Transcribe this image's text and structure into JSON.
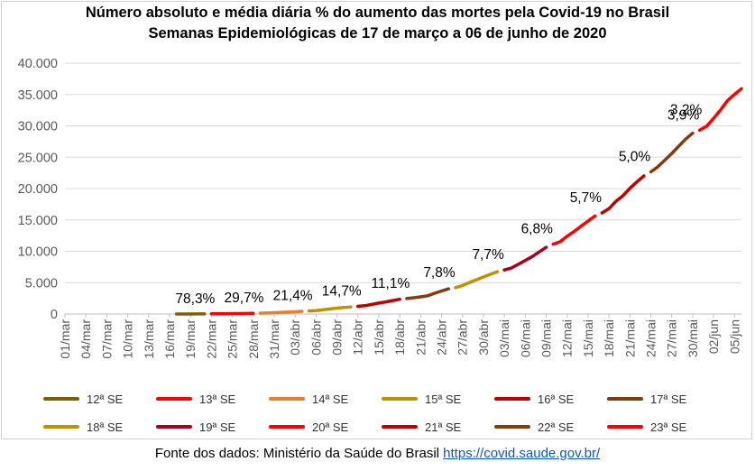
{
  "chart_data": {
    "type": "line",
    "title": "Número absoluto e média diária % do aumento das mortes pela Covid-19 no Brasil",
    "subtitle": "Semanas Epidemiológicas de 17 de março a 06 de junho de 2020",
    "ylim": [
      0,
      40000
    ],
    "yticks": [
      "0",
      "5.000",
      "10.000",
      "15.000",
      "20.000",
      "25.000",
      "30.000",
      "35.000",
      "40.000"
    ],
    "ytick_values": [
      0,
      5000,
      10000,
      15000,
      20000,
      25000,
      30000,
      35000,
      40000
    ],
    "x_start": "2020-03-01",
    "x_end": "2020-06-06",
    "xticks": [
      "01/mar",
      "04/mar",
      "07/mar",
      "10/mar",
      "13/mar",
      "16/mar",
      "19/mar",
      "22/mar",
      "25/mar",
      "28/mar",
      "31/mar",
      "03/abr",
      "06/abr",
      "09/abr",
      "12/abr",
      "15/abr",
      "18/abr",
      "21/abr",
      "24/abr",
      "27/abr",
      "30/abr",
      "03/mai",
      "06/mai",
      "09/mai",
      "12/mai",
      "15/mai",
      "18/mai",
      "21/mai",
      "24/mai",
      "27/mai",
      "30/mai",
      "02/jun",
      "05/jun"
    ],
    "xtick_dates": [
      "2020-03-01",
      "2020-03-04",
      "2020-03-07",
      "2020-03-10",
      "2020-03-13",
      "2020-03-16",
      "2020-03-19",
      "2020-03-22",
      "2020-03-25",
      "2020-03-28",
      "2020-03-31",
      "2020-04-03",
      "2020-04-06",
      "2020-04-09",
      "2020-04-12",
      "2020-04-15",
      "2020-04-18",
      "2020-04-21",
      "2020-04-24",
      "2020-04-27",
      "2020-04-30",
      "2020-05-03",
      "2020-05-06",
      "2020-05-09",
      "2020-05-12",
      "2020-05-15",
      "2020-05-18",
      "2020-05-21",
      "2020-05-24",
      "2020-05-27",
      "2020-05-30",
      "2020-06-02",
      "2020-06-05"
    ],
    "grid": true,
    "legend_position": "bottom",
    "series": [
      {
        "name": "12ª SE",
        "color": "#7f6000",
        "label": "",
        "x": [
          "2020-03-17",
          "2020-03-18",
          "2020-03-19",
          "2020-03-20",
          "2020-03-21"
        ],
        "y": [
          1,
          4,
          7,
          11,
          18
        ]
      },
      {
        "name": "13ª SE",
        "color": "#ff0000",
        "label": "78,3%",
        "x": [
          "2020-03-22",
          "2020-03-23",
          "2020-03-24",
          "2020-03-25",
          "2020-03-26",
          "2020-03-27",
          "2020-03-28"
        ],
        "y": [
          25,
          34,
          46,
          57,
          77,
          92,
          111
        ]
      },
      {
        "name": "14ª SE",
        "color": "#ed7d31",
        "label": "29,7%",
        "x": [
          "2020-03-29",
          "2020-03-30",
          "2020-03-31",
          "2020-04-01",
          "2020-04-02",
          "2020-04-03",
          "2020-04-04"
        ],
        "y": [
          136,
          159,
          201,
          240,
          299,
          359,
          432
        ]
      },
      {
        "name": "15ª SE",
        "color": "#bf9000",
        "label": "21,4%",
        "x": [
          "2020-04-05",
          "2020-04-06",
          "2020-04-07",
          "2020-04-08",
          "2020-04-09",
          "2020-04-10",
          "2020-04-11"
        ],
        "y": [
          486,
          553,
          667,
          800,
          941,
          1057,
          1124
        ]
      },
      {
        "name": "16ª SE",
        "color": "#c00000",
        "label": "14,7%",
        "x": [
          "2020-04-12",
          "2020-04-13",
          "2020-04-14",
          "2020-04-15",
          "2020-04-16",
          "2020-04-17",
          "2020-04-18"
        ],
        "y": [
          1223,
          1328,
          1532,
          1736,
          1924,
          2141,
          2347
        ]
      },
      {
        "name": "17ª SE",
        "color": "#843c0c",
        "label": "11,1%",
        "x": [
          "2020-04-19",
          "2020-04-20",
          "2020-04-21",
          "2020-04-22",
          "2020-04-23",
          "2020-04-24",
          "2020-04-25"
        ],
        "y": [
          2462,
          2587,
          2741,
          2906,
          3313,
          3670,
          4016
        ]
      },
      {
        "name": "18ª SE",
        "color": "#bf9000",
        "label": "7,8%",
        "x": [
          "2020-04-26",
          "2020-04-27",
          "2020-04-28",
          "2020-04-29",
          "2020-04-30",
          "2020-05-01",
          "2020-05-02"
        ],
        "y": [
          4205,
          4543,
          5017,
          5466,
          5901,
          6329,
          6750
        ]
      },
      {
        "name": "19ª SE",
        "color": "#a50021",
        "label": "7,7%",
        "x": [
          "2020-05-03",
          "2020-05-04",
          "2020-05-05",
          "2020-05-06",
          "2020-05-07",
          "2020-05-08",
          "2020-05-09"
        ],
        "y": [
          7025,
          7321,
          7921,
          8536,
          9146,
          9897,
          10627
        ]
      },
      {
        "name": "20ª SE",
        "color": "#ff0000",
        "label": "6,8%",
        "x": [
          "2020-05-10",
          "2020-05-11",
          "2020-05-12",
          "2020-05-13",
          "2020-05-14",
          "2020-05-15",
          "2020-05-16"
        ],
        "y": [
          11123,
          11519,
          12400,
          13149,
          13993,
          14817,
          15633
        ]
      },
      {
        "name": "21ª SE",
        "color": "#c00000",
        "label": "5,7%",
        "x": [
          "2020-05-17",
          "2020-05-18",
          "2020-05-19",
          "2020-05-20",
          "2020-05-21",
          "2020-05-22",
          "2020-05-23"
        ],
        "y": [
          16118,
          16792,
          17971,
          18859,
          20047,
          21048,
          22013
        ]
      },
      {
        "name": "22ª SE",
        "color": "#843c0c",
        "label": "5,0%",
        "x": [
          "2020-05-24",
          "2020-05-25",
          "2020-05-26",
          "2020-05-27",
          "2020-05-28",
          "2020-05-29",
          "2020-05-30"
        ],
        "y": [
          22666,
          23473,
          24512,
          25598,
          26754,
          27878,
          28834
        ]
      },
      {
        "name": "23ª SE",
        "color": "#ff0000",
        "label": "3,9%",
        "x": [
          "2020-05-31",
          "2020-06-01",
          "2020-06-02",
          "2020-06-03",
          "2020-06-04",
          "2020-06-05",
          "2020-06-06"
        ],
        "y": [
          29314,
          29937,
          31199,
          32548,
          34021,
          35026,
          35930
        ]
      }
    ],
    "extra_labels": [
      "3,2%"
    ]
  },
  "source": {
    "text": "Fonte dos dados: Ministério da Saúde do Brasil ",
    "link": "https://covid.saude.gov.br/"
  }
}
